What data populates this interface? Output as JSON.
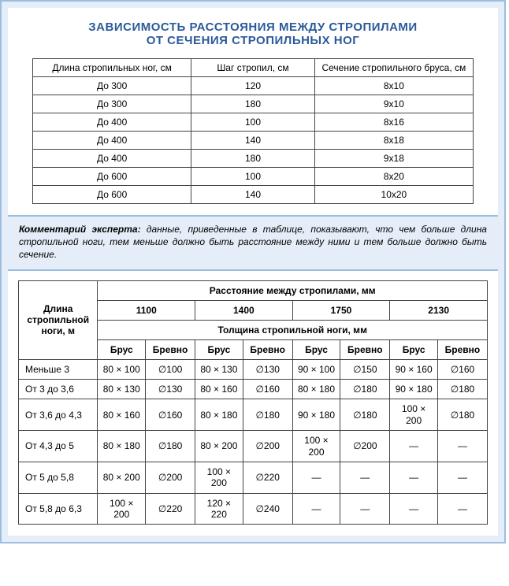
{
  "title": {
    "line1": "ЗАВИСИМОСТЬ РАССТОЯНИЯ МЕЖДУ СТРОПИЛАМИ",
    "line2": "ОТ СЕЧЕНИЯ СТРОПИЛЬНЫХ НОГ"
  },
  "table1": {
    "headers": [
      "Длина стропильных ног, см",
      "Шаг стропил, см",
      "Сечение стропильного бруса, см"
    ],
    "rows": [
      [
        "До 300",
        "120",
        "8х10"
      ],
      [
        "До 300",
        "180",
        "9х10"
      ],
      [
        "До 400",
        "100",
        "8х16"
      ],
      [
        "До 400",
        "140",
        "8х18"
      ],
      [
        "До 400",
        "180",
        "9х18"
      ],
      [
        "До 600",
        "100",
        "8х20"
      ],
      [
        "До 600",
        "140",
        "10х20"
      ]
    ]
  },
  "comment": {
    "label": "Комментарий эксперта:",
    "text": "данные, приведенные в таблице, показывают, что чем больше длина стропильной ноги, тем меньше должно быть расстояние между ними и тем больше должно быть сечение."
  },
  "table2": {
    "row_header": "Длина стропильной ноги, м",
    "span_header": "Расстояние между стропилами, мм",
    "dist_cols": [
      "1100",
      "1400",
      "1750",
      "2130"
    ],
    "thickness_header": "Толщина стропильной ноги, мм",
    "sub_cols": [
      "Брус",
      "Бревно",
      "Брус",
      "Бревно",
      "Брус",
      "Бревно",
      "Брус",
      "Бревно"
    ],
    "rows": [
      {
        "label": "Меньше 3",
        "cells": [
          "80 × 100",
          "∅100",
          "80 × 130",
          "∅130",
          "90 × 100",
          "∅150",
          "90 × 160",
          "∅160"
        ]
      },
      {
        "label": "От 3 до 3,6",
        "cells": [
          "80 × 130",
          "∅130",
          "80 × 160",
          "∅160",
          "80 × 180",
          "∅180",
          "90 × 180",
          "∅180"
        ]
      },
      {
        "label": "От 3,6 до 4,3",
        "cells": [
          "80 × 160",
          "∅160",
          "80 × 180",
          "∅180",
          "90 × 180",
          "∅180",
          "100 × 200",
          "∅180"
        ]
      },
      {
        "label": "От 4,3 до 5",
        "cells": [
          "80 × 180",
          "∅180",
          "80 × 200",
          "∅200",
          "100 × 200",
          "∅200",
          "—",
          "—"
        ]
      },
      {
        "label": "От 5 до 5,8",
        "cells": [
          "80 × 200",
          "∅200",
          "100 × 200",
          "∅220",
          "—",
          "—",
          "—",
          "—"
        ]
      },
      {
        "label": "От 5,8 до 6,3",
        "cells": [
          "100 × 200",
          "∅220",
          "120 × 220",
          "∅240",
          "—",
          "—",
          "—",
          "—"
        ]
      }
    ]
  },
  "colors": {
    "border_mid": "#9bbde0",
    "border_light": "#e5eef8",
    "title": "#2a5a9a",
    "cell_border": "#444444",
    "text": "#000000"
  }
}
